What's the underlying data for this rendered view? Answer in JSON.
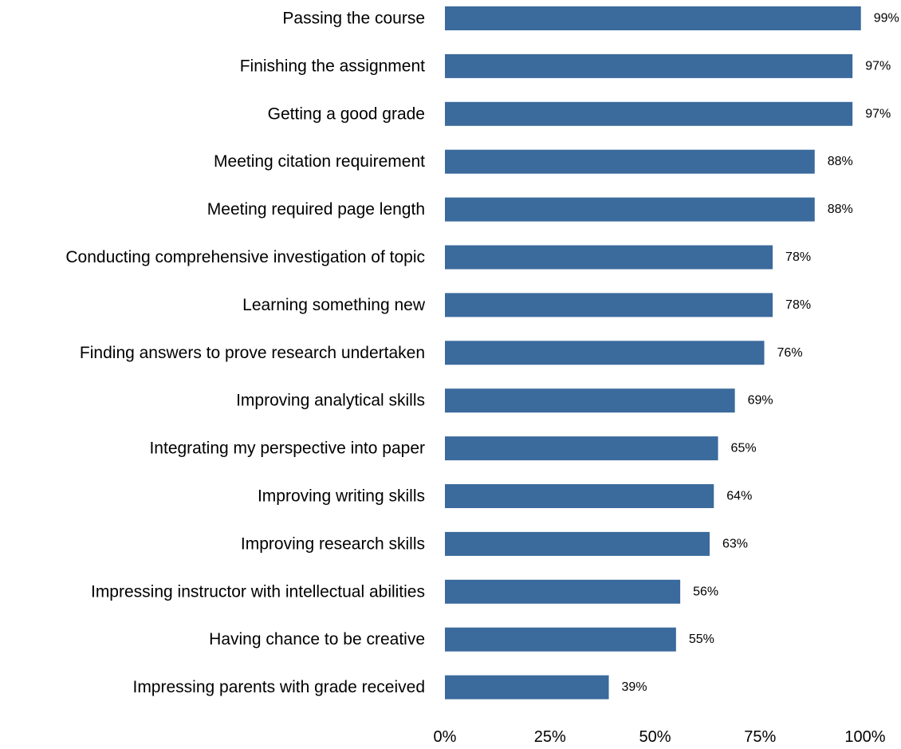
{
  "chart_data": {
    "type": "bar",
    "orientation": "horizontal",
    "title": "",
    "xlabel": "",
    "ylabel": "",
    "categories": [
      "Passing the course",
      "Finishing the assignment",
      "Getting a good grade",
      "Meeting citation requirement",
      "Meeting required page length",
      "Conducting comprehensive investigation of topic",
      "Learning something new",
      "Finding answers to prove research undertaken",
      "Improving analytical skills",
      "Integrating my perspective into paper",
      "Improving writing skills",
      "Improving research skills",
      "Impressing instructor with intellectual abilities",
      "Having chance to be creative",
      "Impressing parents with grade received"
    ],
    "values": [
      99,
      97,
      97,
      88,
      88,
      78,
      78,
      76,
      69,
      65,
      64,
      63,
      56,
      55,
      39
    ],
    "value_labels": [
      "99%",
      "97%",
      "97%",
      "88%",
      "88%",
      "78%",
      "78%",
      "76%",
      "69%",
      "65%",
      "64%",
      "63%",
      "56%",
      "55%",
      "39%"
    ],
    "xlim": [
      0,
      100
    ],
    "x_ticks": [
      0,
      25,
      50,
      75,
      100
    ],
    "x_tick_labels": [
      "0%",
      "25%",
      "50%",
      "75%",
      "100%"
    ],
    "grid": false,
    "legend": "none",
    "bar_color": "#3b6a9c"
  }
}
